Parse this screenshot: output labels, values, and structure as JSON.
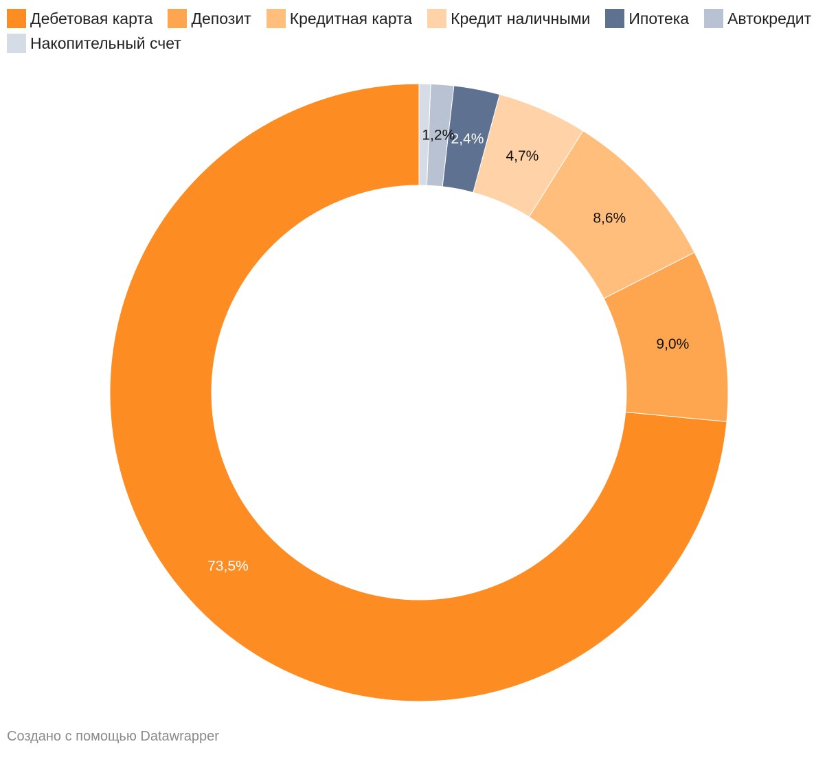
{
  "chart_data": {
    "type": "pie",
    "variant": "donut",
    "categories": [
      "Дебетовая карта",
      "Депозит",
      "Кредитная карта",
      "Кредит наличными",
      "Ипотека",
      "Автокредит",
      "Накопительный счет"
    ],
    "values": [
      73.5,
      9.0,
      8.6,
      4.7,
      2.4,
      1.2,
      0.6
    ],
    "labels": [
      "73,5%",
      "9,0%",
      "8,6%",
      "4,7%",
      "2,4%",
      "1,2%",
      ""
    ],
    "colors": [
      "#fd8d22",
      "#fda64f",
      "#ffbe7c",
      "#ffd3a7",
      "#5e7190",
      "#b8c2d2",
      "#d6dce6"
    ],
    "label_colors": [
      "#ffffff",
      "#111111",
      "#111111",
      "#111111",
      "#ffffff",
      "#111111",
      "#111111"
    ],
    "legend_placement": "top-left",
    "start": "top",
    "direction": "counterclockwise"
  },
  "footer": {
    "credit": "Создано с помощью Datawrapper"
  }
}
